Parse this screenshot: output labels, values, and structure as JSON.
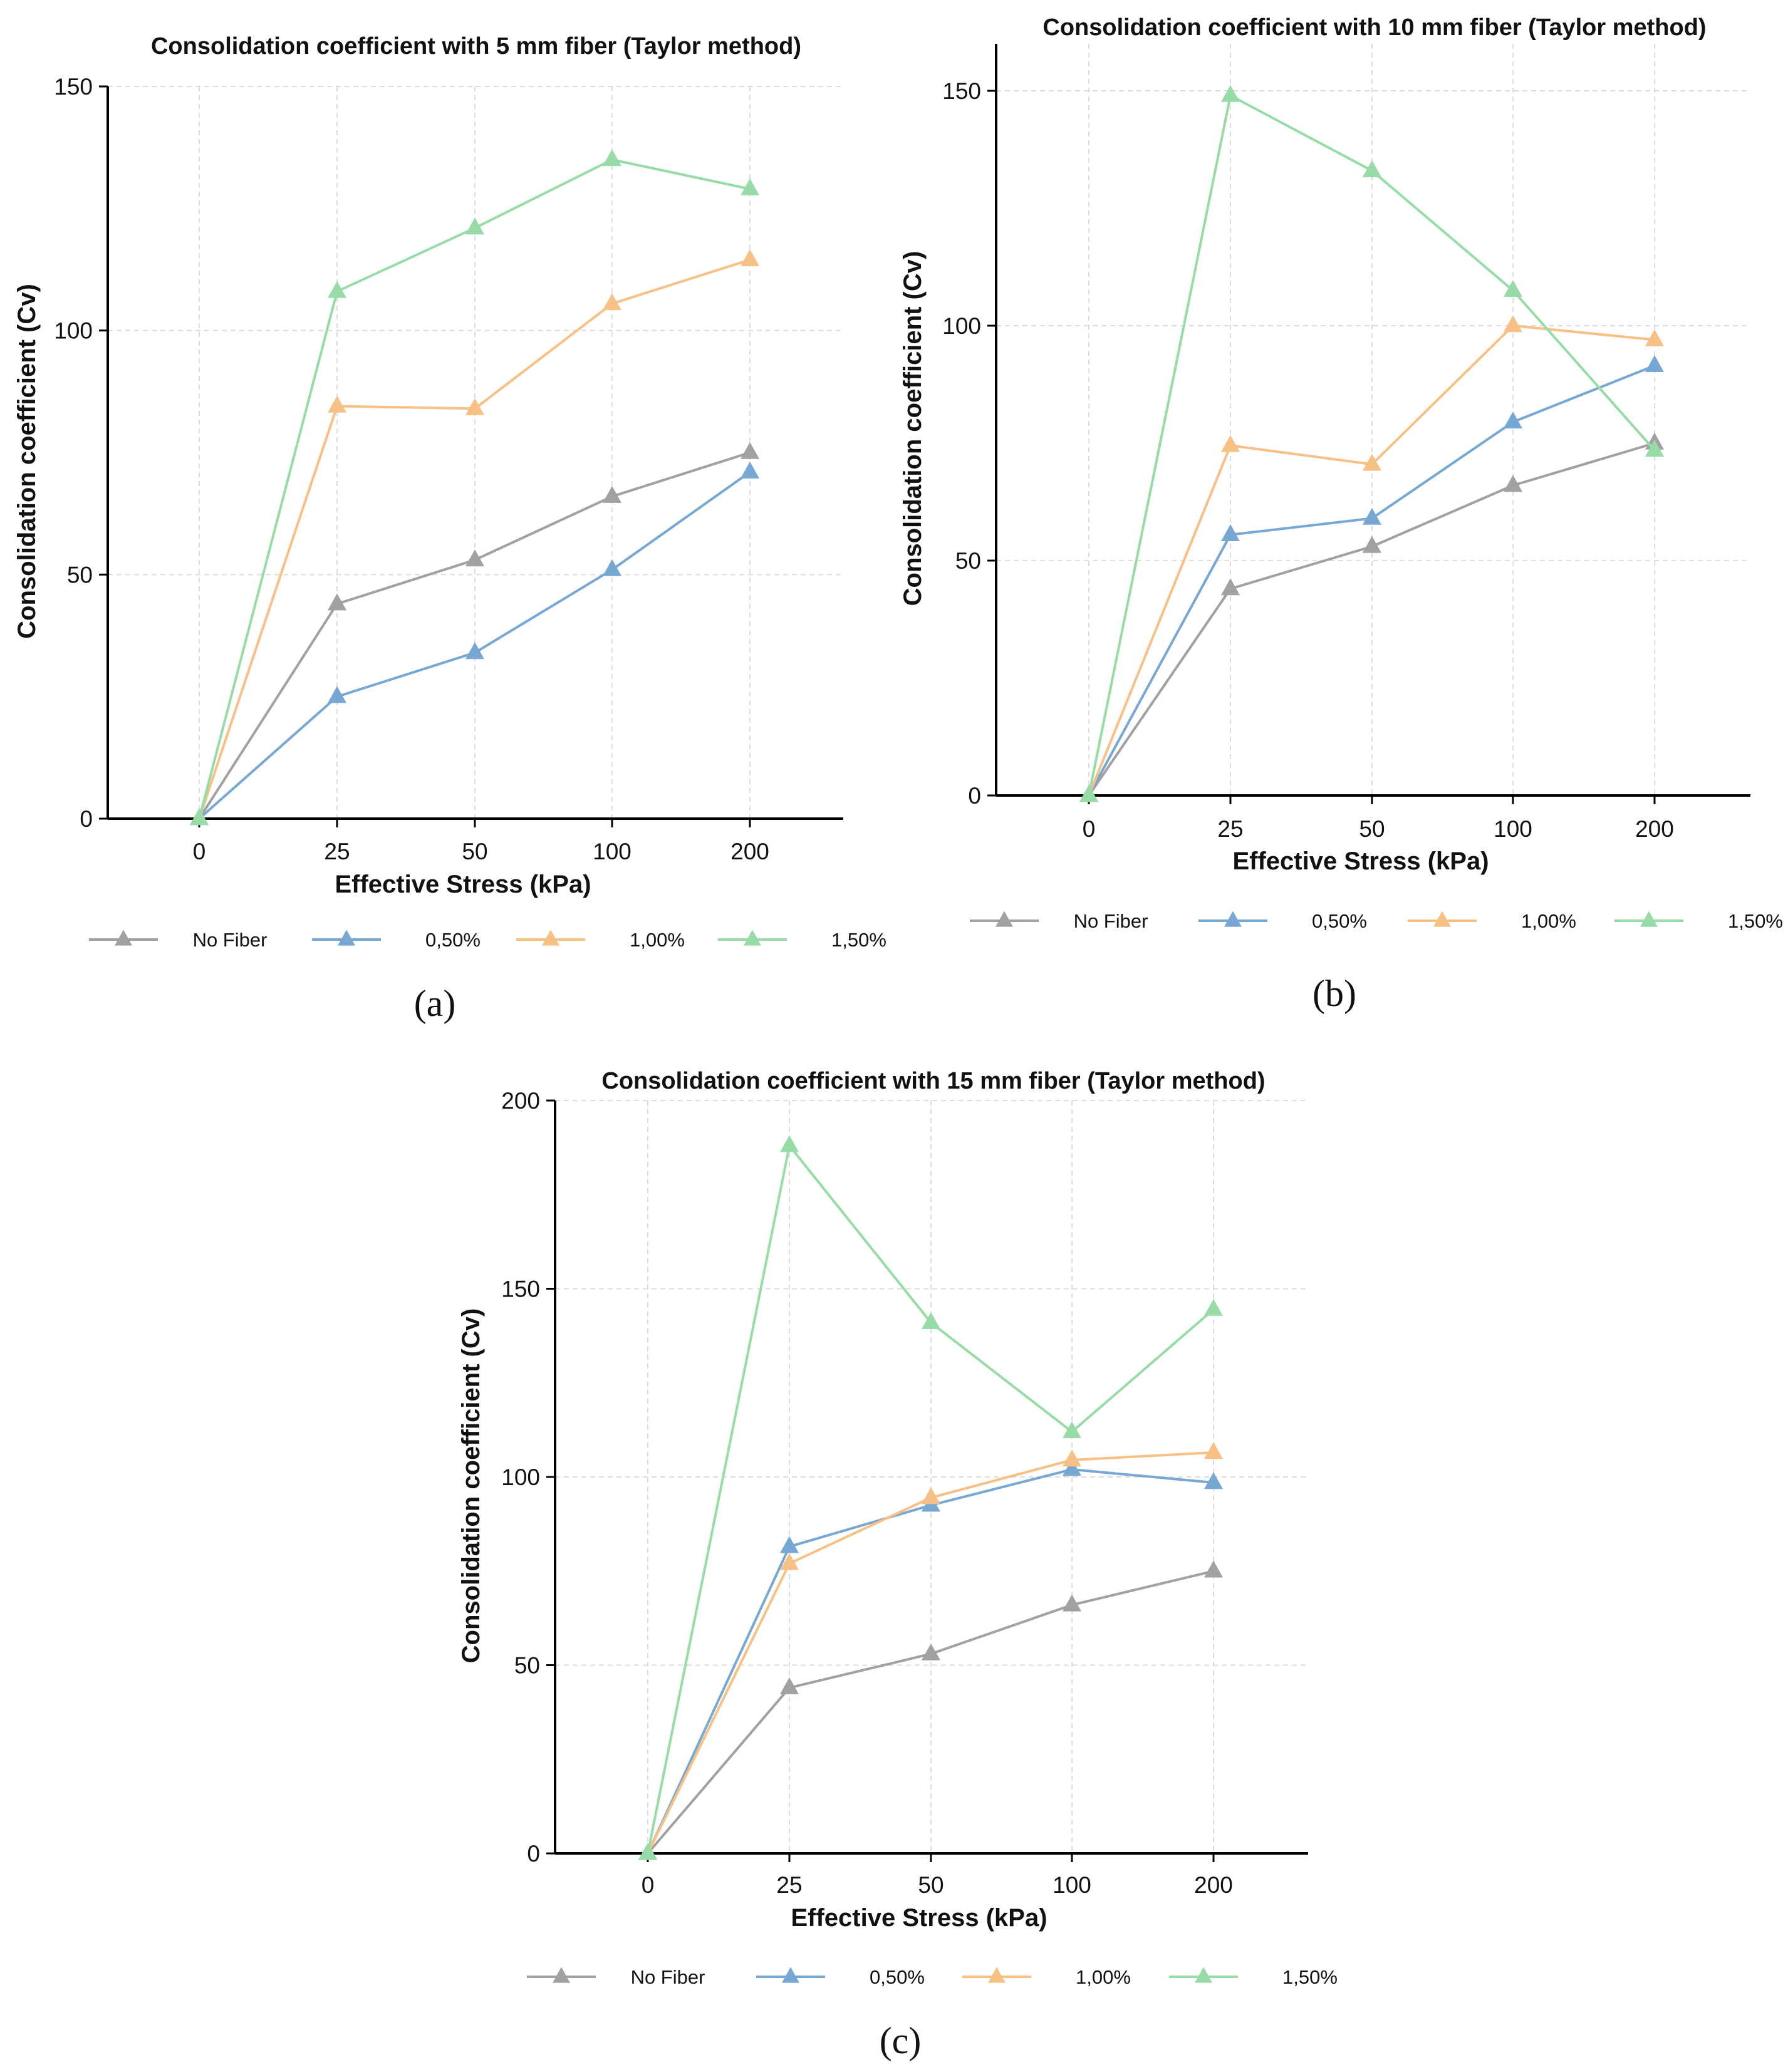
{
  "colors": {
    "No Fiber": "#a2a0a3",
    "0,50%": "#77a7d3",
    "1,00%": "#f7c085",
    "1,50%": "#97dca6"
  },
  "chart_data": [
    {
      "type": "line",
      "panel_label": "(a)",
      "title": "Consolidation coefficient with 5 mm fiber (Taylor method)",
      "xlabel": "Effective Stress (kPa)",
      "ylabel": "Consolidation coefficient (Cv)",
      "categories": [
        "0",
        "25",
        "50",
        "100",
        "200"
      ],
      "ylim": [
        0,
        150
      ],
      "yticks": [
        0,
        50,
        100,
        150
      ],
      "grid": true,
      "legend_position": "bottom",
      "marker": "triangle",
      "series": [
        {
          "name": "No Fiber",
          "values": [
            0,
            44,
            53,
            66,
            75
          ]
        },
        {
          "name": "0,50%",
          "values": [
            0,
            25,
            34,
            51,
            71
          ]
        },
        {
          "name": "1,00%",
          "values": [
            0,
            84.5,
            84,
            105.5,
            114.5
          ]
        },
        {
          "name": "1,50%",
          "values": [
            0,
            108,
            121,
            135,
            129
          ]
        }
      ]
    },
    {
      "type": "line",
      "panel_label": "(b)",
      "title": "Consolidation coefficient with 10 mm fiber (Taylor method)",
      "xlabel": "Effective Stress (kPa)",
      "ylabel": "Consolidation coefficient (Cv)",
      "categories": [
        "0",
        "25",
        "50",
        "100",
        "200"
      ],
      "ylim": [
        0,
        160
      ],
      "yticks": [
        0,
        50,
        100,
        150
      ],
      "grid": true,
      "legend_position": "bottom",
      "marker": "triangle",
      "series": [
        {
          "name": "No Fiber",
          "values": [
            0,
            44,
            53,
            66,
            75
          ]
        },
        {
          "name": "0,50%",
          "values": [
            0,
            55.5,
            59,
            79.5,
            91.5
          ]
        },
        {
          "name": "1,00%",
          "values": [
            0,
            74.5,
            70.5,
            100,
            97
          ]
        },
        {
          "name": "1,50%",
          "values": [
            0,
            149,
            133,
            107.5,
            73.5
          ]
        }
      ]
    },
    {
      "type": "line",
      "panel_label": "(c)",
      "title": "Consolidation coefficient with 15 mm fiber (Taylor method)",
      "xlabel": "Effective Stress (kPa)",
      "ylabel": "Consolidation coefficient (Cv)",
      "categories": [
        "0",
        "25",
        "50",
        "100",
        "200"
      ],
      "ylim": [
        0,
        200
      ],
      "yticks": [
        0,
        50,
        100,
        150,
        200
      ],
      "grid": true,
      "legend_position": "bottom",
      "marker": "triangle",
      "series": [
        {
          "name": "No Fiber",
          "values": [
            0,
            44,
            53,
            66,
            75
          ]
        },
        {
          "name": "0,50%",
          "values": [
            0,
            81.5,
            92.5,
            102,
            98.5
          ]
        },
        {
          "name": "1,00%",
          "values": [
            0,
            77,
            94.5,
            104.5,
            106.5
          ]
        },
        {
          "name": "1,50%",
          "values": [
            0,
            188,
            141,
            112,
            144.5
          ]
        }
      ]
    }
  ]
}
